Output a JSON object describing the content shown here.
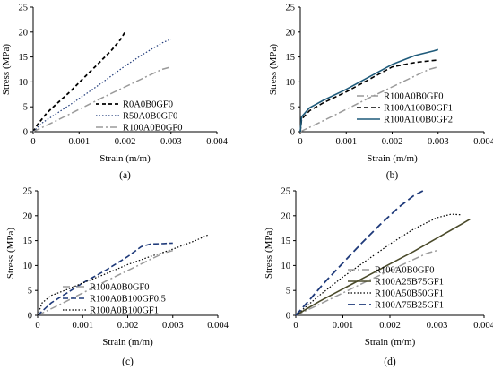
{
  "colors": {
    "black": "#000000",
    "navy": "#1f3a7a",
    "gray": "#9a9a9a",
    "teal": "#1e5a7a",
    "olive": "#4a4a2a"
  },
  "chart_data": [
    {
      "type": "line",
      "panel_label": "(a)",
      "xlabel": "Strain (m/m)",
      "ylabel": "Stress (MPa)",
      "xlim": [
        0,
        0.004
      ],
      "ylim": [
        0,
        25
      ],
      "xticks": [
        "0",
        "0.001",
        "0.002",
        "0.003",
        "0.004"
      ],
      "yticks": [
        "0",
        "5",
        "10",
        "15",
        "20",
        "25"
      ],
      "legend_position": "bottom-right",
      "grid": false,
      "series": [
        {
          "name": "R0A0B0GF0",
          "color": "#000000",
          "dash": "4,3",
          "width": 1.8,
          "x": [
            0,
            0.0001,
            0.0003,
            0.0005,
            0.0008,
            0.0011,
            0.0014,
            0.0017,
            0.0019,
            0.002
          ],
          "y": [
            0,
            1.5,
            3.8,
            5.5,
            8.0,
            10.8,
            13.5,
            16.3,
            18.5,
            20.0
          ]
        },
        {
          "name": "R50A0B0GF0",
          "color": "#1f3a7a",
          "dash": "1.5,2",
          "width": 1.2,
          "x": [
            0,
            0.0002,
            0.0005,
            0.0008,
            0.0012,
            0.0016,
            0.002,
            0.0024,
            0.0028,
            0.003
          ],
          "y": [
            0,
            1.8,
            3.6,
            5.4,
            7.9,
            10.5,
            13.2,
            15.6,
            17.8,
            18.6
          ]
        },
        {
          "name": "R100A0B0GF0",
          "color": "#9a9a9a",
          "dash": "8,3,2,3",
          "width": 1.5,
          "x": [
            0,
            0.0005,
            0.001,
            0.0015,
            0.002,
            0.0025,
            0.0028,
            0.003
          ],
          "y": [
            0,
            2.2,
            4.5,
            6.8,
            9.0,
            11.2,
            12.5,
            13.0
          ]
        }
      ]
    },
    {
      "type": "line",
      "panel_label": "(b)",
      "xlabel": "Strain (m/m)",
      "ylabel": "Stress (MPa)",
      "xlim": [
        0,
        0.004
      ],
      "ylim": [
        0,
        25
      ],
      "xticks": [
        "0",
        "0.001",
        "0.002",
        "0.003",
        "0.004"
      ],
      "yticks": [
        "0",
        "5",
        "10",
        "15",
        "20",
        "25"
      ],
      "legend_position": "bottom-right",
      "grid": false,
      "series": [
        {
          "name": "R100A0B0GF0",
          "color": "#9a9a9a",
          "dash": "8,3,2,3",
          "width": 1.5,
          "x": [
            0,
            0.0005,
            0.001,
            0.0015,
            0.002,
            0.0025,
            0.0028,
            0.003
          ],
          "y": [
            0,
            2.2,
            4.5,
            6.8,
            9.0,
            11.2,
            12.5,
            13.0
          ]
        },
        {
          "name": "R100A100B0GF1",
          "color": "#000000",
          "dash": "5,3",
          "width": 1.6,
          "x": [
            0,
            3e-05,
            0.0002,
            0.0005,
            0.001,
            0.0015,
            0.002,
            0.0025,
            0.003
          ],
          "y": [
            0,
            2.5,
            4.2,
            5.8,
            8.0,
            10.5,
            13.0,
            13.9,
            14.4
          ]
        },
        {
          "name": "R100A100B0GF2",
          "color": "#1e5a7a",
          "dash": "",
          "width": 1.6,
          "x": [
            0,
            3e-05,
            0.0002,
            0.0005,
            0.001,
            0.0015,
            0.002,
            0.0025,
            0.0029,
            0.003
          ],
          "y": [
            0,
            3.0,
            4.8,
            6.3,
            8.5,
            11.0,
            13.5,
            15.3,
            16.2,
            16.5
          ]
        }
      ]
    },
    {
      "type": "line",
      "panel_label": "(c)",
      "xlabel": "Strain (m/m)",
      "ylabel": "Stress (MPa)",
      "xlim": [
        0,
        0.004
      ],
      "ylim": [
        0,
        25
      ],
      "xticks": [
        "0",
        "0.001",
        "0.002",
        "0.003",
        "0.004"
      ],
      "yticks": [
        "0",
        "5",
        "10",
        "15",
        "20",
        "25"
      ],
      "legend_position": "bottom-right",
      "grid": false,
      "series": [
        {
          "name": "R100A0B0GF0",
          "color": "#9a9a9a",
          "dash": "8,3,2,3",
          "width": 1.5,
          "x": [
            0,
            0.0005,
            0.001,
            0.0015,
            0.002,
            0.0025,
            0.0028,
            0.003
          ],
          "y": [
            0,
            2.2,
            4.5,
            6.8,
            9.0,
            11.2,
            12.5,
            13.0
          ]
        },
        {
          "name": "R100A0B100GF0.5",
          "color": "#1f3a7a",
          "dash": "6,3",
          "width": 1.6,
          "x": [
            0,
            0.0003,
            0.0006,
            0.001,
            0.0015,
            0.002,
            0.0023,
            0.0025,
            0.0028,
            0.003
          ],
          "y": [
            0,
            2.5,
            4.2,
            6.5,
            9.0,
            11.8,
            13.8,
            14.3,
            14.4,
            14.5
          ]
        },
        {
          "name": "R100A0B100GF1",
          "color": "#000000",
          "dash": "1.5,2",
          "width": 1.2,
          "x": [
            0,
            0.0001,
            0.0003,
            0.0006,
            0.001,
            0.0015,
            0.002,
            0.0025,
            0.003,
            0.0035,
            0.0038
          ],
          "y": [
            0,
            2.5,
            4.0,
            5.0,
            6.5,
            8.3,
            10.2,
            11.8,
            13.3,
            15.0,
            16.2
          ]
        }
      ]
    },
    {
      "type": "line",
      "panel_label": "(d)",
      "xlabel": "Strain (m/m)",
      "ylabel": "Stress (MPa)",
      "xlim": [
        0,
        0.004
      ],
      "ylim": [
        0,
        25
      ],
      "xticks": [
        "0",
        "0.001",
        "0.002",
        "0.003",
        "0.004"
      ],
      "yticks": [
        "0",
        "5",
        "10",
        "15",
        "20",
        "25"
      ],
      "legend_position": "bottom-right",
      "grid": false,
      "series": [
        {
          "name": "R100A0B0GF0",
          "color": "#9a9a9a",
          "dash": "8,3,2,3",
          "width": 1.5,
          "x": [
            0,
            0.0005,
            0.001,
            0.0015,
            0.002,
            0.0025,
            0.0028,
            0.003
          ],
          "y": [
            0,
            2.2,
            4.5,
            6.8,
            9.0,
            11.2,
            12.5,
            13.0
          ]
        },
        {
          "name": "R100A25B75GF1",
          "color": "#4a4a2a",
          "dash": "",
          "width": 1.6,
          "x": [
            0,
            0.0005,
            0.001,
            0.0015,
            0.002,
            0.0025,
            0.003,
            0.0035,
            0.0037
          ],
          "y": [
            0,
            2.8,
            5.3,
            7.8,
            10.3,
            12.8,
            15.5,
            18.2,
            19.3
          ]
        },
        {
          "name": "R100A50B50GF1",
          "color": "#000000",
          "dash": "1.5,2",
          "width": 1.2,
          "x": [
            0,
            0.0005,
            0.001,
            0.0015,
            0.002,
            0.0025,
            0.003,
            0.0033,
            0.0035
          ],
          "y": [
            0,
            4.0,
            7.7,
            11.0,
            14.3,
            17.3,
            19.6,
            20.3,
            20.2
          ]
        },
        {
          "name": "R100A75B25GF1",
          "color": "#1f3a7a",
          "dash": "8,4",
          "width": 1.8,
          "x": [
            0,
            0.0003,
            0.0006,
            0.001,
            0.0014,
            0.0018,
            0.0022,
            0.0025,
            0.0027
          ],
          "y": [
            0,
            3.2,
            6.5,
            10.5,
            14.5,
            18.3,
            21.8,
            24.0,
            25.0
          ]
        }
      ]
    }
  ]
}
